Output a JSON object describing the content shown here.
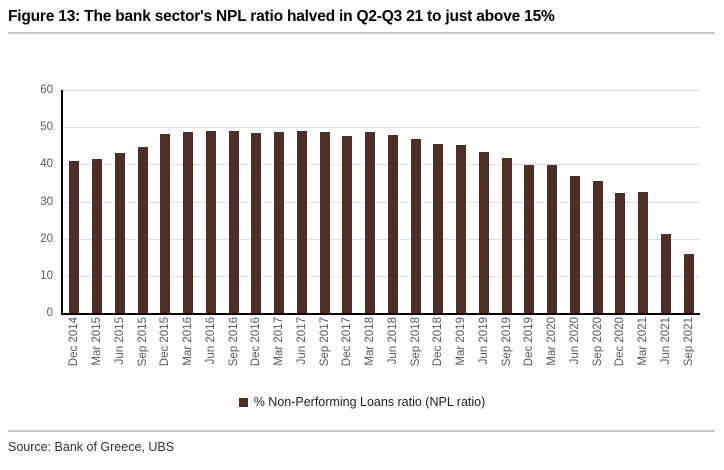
{
  "title": "Figure 13: The bank sector's NPL ratio halved in Q2-Q3 21 to just above 15%",
  "source": "Source: Bank of Greece, UBS",
  "legend": {
    "label": "% Non-Performing Loans ratio (NPL ratio)"
  },
  "colors": {
    "bar": "#4e2e29",
    "gridline": "#dcdcdc",
    "axis": "#000000",
    "tick_label": "#595959",
    "rule": "#c6c6c6"
  },
  "chart_data": {
    "type": "bar",
    "title": "Figure 13: The bank sector's NPL ratio halved in Q2-Q3 21 to just above 15%",
    "xlabel": "",
    "ylabel": "",
    "ylim": [
      0,
      60
    ],
    "yticks": [
      0,
      10,
      20,
      30,
      40,
      50,
      60
    ],
    "grid": true,
    "legend_position": "bottom",
    "series_name": "% Non-Performing Loans ratio (NPL ratio)",
    "categories": [
      "Dec 2014",
      "Mar 2015",
      "Jun 2015",
      "Sep 2015",
      "Dec 2015",
      "Mar 2016",
      "Jun 2016",
      "Sep 2016",
      "Dec 2016",
      "Mar 2017",
      "Jun 2017",
      "Sep 2017",
      "Dec 2017",
      "Mar 2018",
      "Jun 2018",
      "Sep 2018",
      "Dec 2018",
      "Mar 2019",
      "Jun 2019",
      "Sep 2019",
      "Dec 2019",
      "Mar 2020",
      "Jun 2020",
      "Sep 2020",
      "Dec 2020",
      "Mar 2021",
      "Jun 2021",
      "Sep 2021"
    ],
    "values": [
      40.8,
      41.5,
      43.0,
      44.6,
      48.1,
      48.6,
      48.9,
      48.9,
      48.5,
      48.8,
      49.1,
      48.8,
      47.5,
      48.8,
      48.0,
      46.9,
      45.4,
      45.1,
      43.2,
      41.7,
      39.8,
      39.9,
      36.8,
      35.5,
      32.3,
      32.6,
      21.2,
      16.0
    ]
  }
}
